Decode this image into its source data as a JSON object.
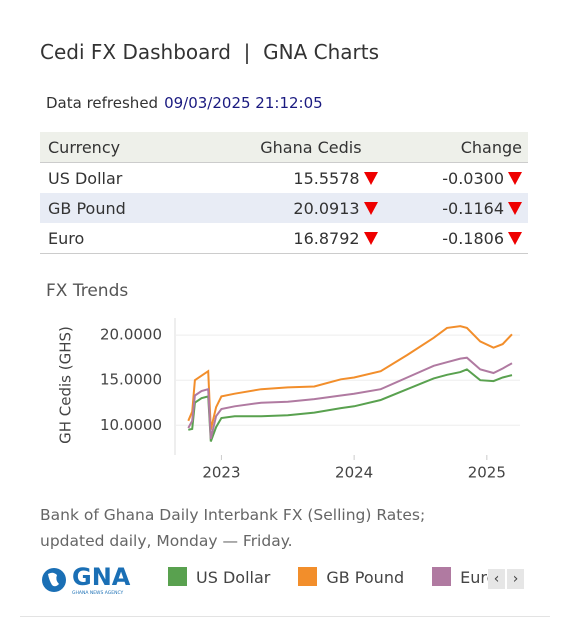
{
  "header": {
    "title": "Cedi FX Dashboard  |  GNA Charts",
    "refreshed_label": "Data refreshed",
    "refreshed_at": "09/03/2025 21:12:05"
  },
  "table": {
    "columns": [
      "Currency",
      "Ghana Cedis",
      "Change"
    ],
    "rows": [
      [
        "US Dollar",
        "15.5578",
        "-0.0300"
      ],
      [
        "GB Pound",
        "20.0913",
        "-0.1164"
      ],
      [
        "Euro",
        "16.8792",
        "-0.1806"
      ]
    ]
  },
  "chart_data": {
    "type": "line",
    "title": "FX Trends",
    "y_label": "GH Cedis (GHS)",
    "x": [
      2022.75,
      2022.78,
      2022.8,
      2022.85,
      2022.9,
      2022.92,
      2022.96,
      2023.0,
      2023.1,
      2023.3,
      2023.5,
      2023.7,
      2023.9,
      2024.0,
      2024.2,
      2024.4,
      2024.6,
      2024.7,
      2024.8,
      2024.85,
      2024.95,
      2025.05,
      2025.12,
      2025.19
    ],
    "series": [
      {
        "name": "US Dollar",
        "color": "#59a14f",
        "values": [
          9.5,
          9.6,
          12.5,
          13.0,
          13.2,
          8.2,
          9.8,
          10.8,
          11.0,
          11.0,
          11.1,
          11.4,
          11.9,
          12.1,
          12.8,
          14.0,
          15.2,
          15.6,
          15.9,
          16.2,
          15.0,
          14.9,
          15.3,
          15.56
        ]
      },
      {
        "name": "GB Pound",
        "color": "#f28e2b",
        "values": [
          10.5,
          11.5,
          15.0,
          15.5,
          16.0,
          9.5,
          12.0,
          13.2,
          13.5,
          14.0,
          14.2,
          14.3,
          15.1,
          15.3,
          16.0,
          17.8,
          19.7,
          20.8,
          21.0,
          20.8,
          19.3,
          18.6,
          19.0,
          20.09
        ]
      },
      {
        "name": "Euro",
        "color": "#b07aa1",
        "values": [
          9.7,
          10.5,
          13.3,
          13.8,
          14.0,
          8.5,
          11.0,
          11.8,
          12.1,
          12.5,
          12.6,
          12.9,
          13.3,
          13.5,
          14.0,
          15.3,
          16.6,
          17.0,
          17.4,
          17.5,
          16.2,
          15.8,
          16.3,
          16.88
        ]
      }
    ],
    "xlim": [
      2022.65,
      2025.25
    ],
    "xticks": [
      2023,
      2024,
      2025
    ],
    "ylim": [
      6.7,
      21.9
    ],
    "yticks": [
      {
        "value": 10,
        "label": "10.0000"
      },
      {
        "value": 15,
        "label": "15.0000"
      },
      {
        "value": 20,
        "label": "20.0000"
      }
    ],
    "grid": true
  },
  "footer": {
    "note": "Bank of Ghana Daily Interbank FX (Selling) Rates; updated daily, Monday — Friday.",
    "logo_name": "GNA",
    "logo_tagline": "GHANA NEWS AGENCY"
  }
}
